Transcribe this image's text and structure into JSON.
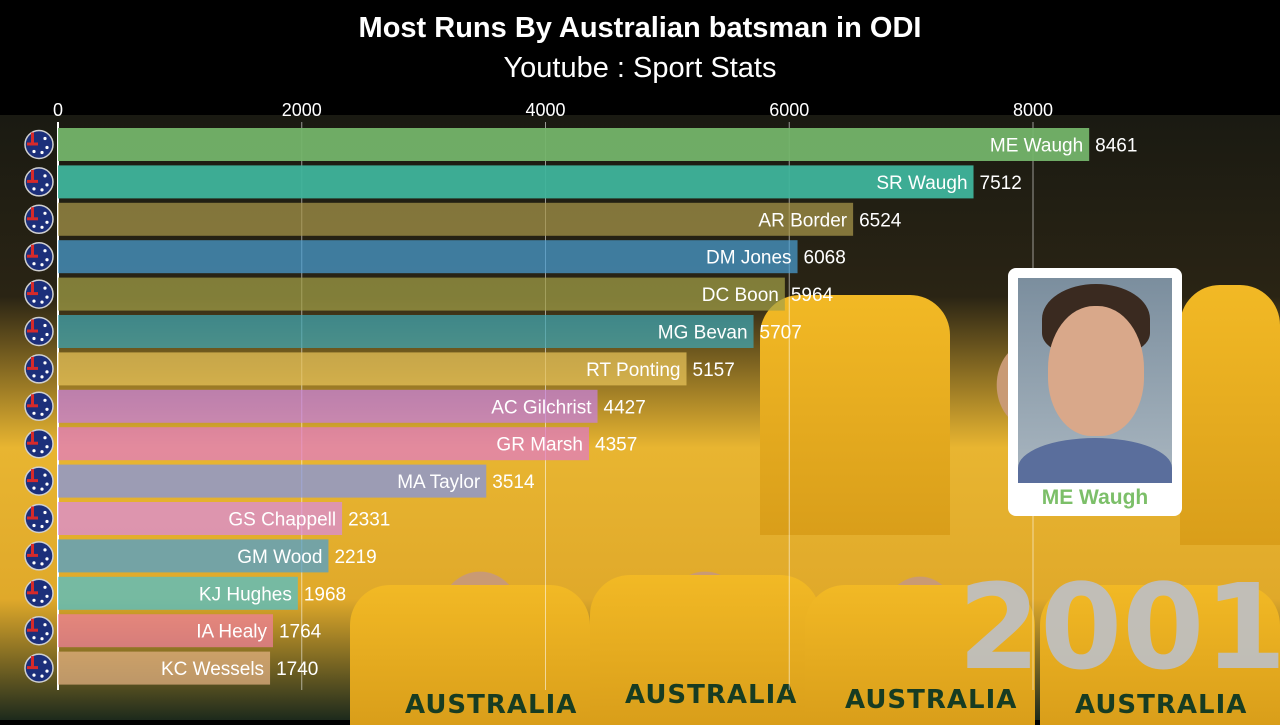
{
  "title": "Most Runs By Australian batsman in ODI",
  "subtitle": "Youtube : Sport Stats",
  "year": "2001",
  "featured": {
    "name": "ME Waugh"
  },
  "chart_data": {
    "type": "bar",
    "orientation": "horizontal",
    "title": "Most Runs By Australian batsman in ODI",
    "subtitle": "Youtube : Sport Stats",
    "xlim": [
      0,
      10000
    ],
    "xticks": [
      0,
      2000,
      4000,
      6000,
      8000
    ],
    "grid": true,
    "categories": [
      "ME Waugh",
      "SR Waugh",
      "AR Border",
      "DM Jones",
      "DC Boon",
      "MG Bevan",
      "RT Ponting",
      "AC Gilchrist",
      "GR Marsh",
      "MA Taylor",
      "GS Chappell",
      "GM Wood",
      "KJ Hughes",
      "IA Healy",
      "KC Wessels"
    ],
    "values": [
      8461,
      7512,
      6524,
      6068,
      5964,
      5707,
      5157,
      4427,
      4357,
      3514,
      2331,
      2219,
      1968,
      1764,
      1740
    ],
    "colors": [
      "#74b46a",
      "#3fb49b",
      "#a9974b",
      "#4a9fd4",
      "#a4a148",
      "#3ea6b4",
      "#e8c35a",
      "#c77fe0",
      "#e07ac8",
      "#7f93e8",
      "#d98ae0",
      "#4a9fd4",
      "#4cc1d0",
      "#f07f9c",
      "#e5b383"
    ]
  }
}
